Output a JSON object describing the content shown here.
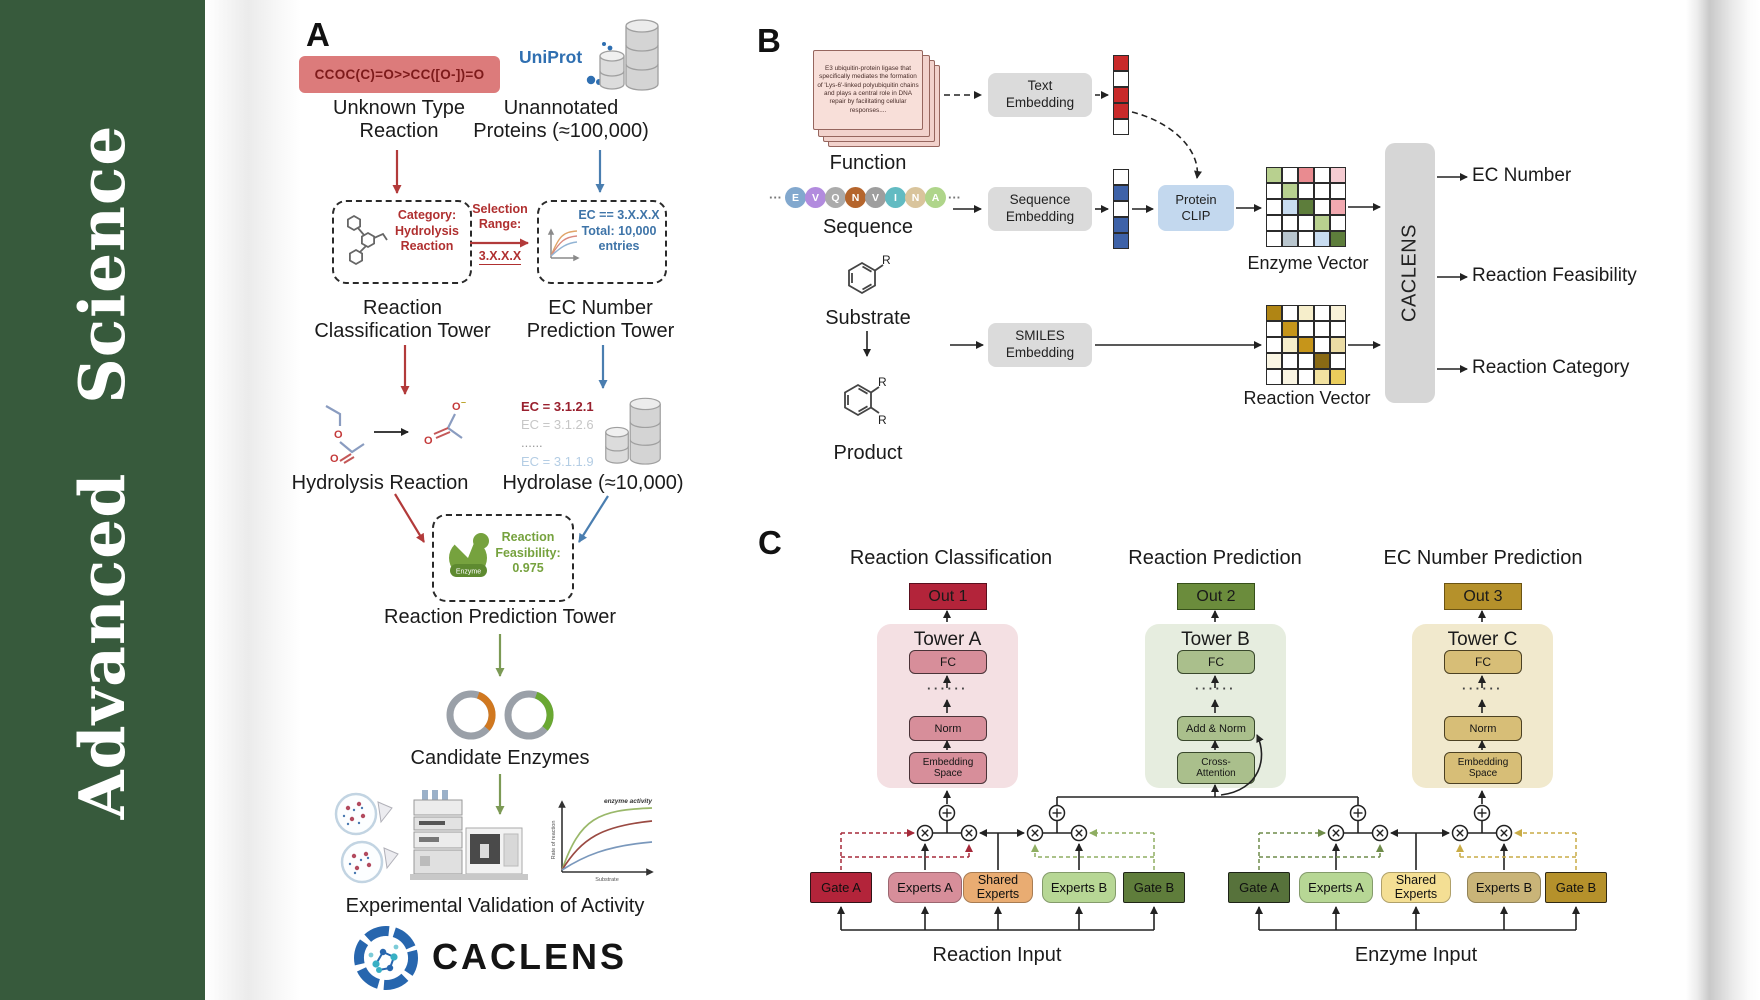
{
  "journal": {
    "name": "Advanced Science",
    "spine_color": "#375A3C"
  },
  "panelA": {
    "label": "A",
    "smiles_box": "CCOC(C)=O>>CC([O-])=O",
    "unknown_type_label": "Unknown Type\nReaction",
    "uniprot_logo": "UniProt",
    "unannotated_label": "Unannotated\nProteins (≈100,000)",
    "category_box": "Category:\nHydrolysis\nReaction",
    "selection_label": "Selection\nRange:",
    "selection_range": "3.X.X.X",
    "ec_box": "EC == 3.X.X.X\nTotal: 10,000\nentries",
    "classification_tower_label": "Reaction\nClassification Tower",
    "ec_tower_label": "EC Number\nPrediction Tower",
    "hydrolysis_label": "Hydrolysis Reaction",
    "ec_list": [
      {
        "text": "EC = 3.1.2.1",
        "color": "#99202E",
        "bold": true
      },
      {
        "text": "EC = 3.1.2.6",
        "color": "#C6C6C6",
        "bold": false
      },
      {
        "text": "......",
        "color": "#9A9A9A",
        "bold": false
      },
      {
        "text": "EC = 3.1.1.9",
        "color": "#B4CDE4",
        "bold": false
      }
    ],
    "hydrolase_label": "Hydrolase (≈10,000)",
    "enzyme_icon_label": "Enzyme",
    "feasibility_box": "Reaction\nFeasibility:\n0.975",
    "prediction_tower_label": "Reaction Prediction Tower",
    "candidate_label": "Candidate Enzymes",
    "validation_label": "Experimental Validation of Activity",
    "brand": "CACLENS",
    "graph": {
      "annotation": "enzyme activity",
      "ylabel": "Rate of reaction",
      "xlabel": "Substrate"
    },
    "accents": {
      "red": "#B23A3A",
      "blue": "#4A7EB0",
      "green": "#7C9A55"
    }
  },
  "panelB": {
    "label": "B",
    "function_card_text": "E3 ubiquitin-protein ligase that specifically mediates the formation of 'Lys-6'-linked polyubiquitin chains and plays a central role in DNA repair by facilitating cellular responses....",
    "function_label": "Function",
    "ellipsis": "···",
    "sequence_letters": [
      {
        "ch": "E",
        "color": "#82A8CE"
      },
      {
        "ch": "V",
        "color": "#B28BDE"
      },
      {
        "ch": "Q",
        "color": "#ABABAB"
      },
      {
        "ch": "N",
        "color": "#B5652C"
      },
      {
        "ch": "V",
        "color": "#9E9E9E"
      },
      {
        "ch": "I",
        "color": "#62BBC2"
      },
      {
        "ch": "N",
        "color": "#D9C49C"
      },
      {
        "ch": "A",
        "color": "#AFD58A"
      }
    ],
    "sequence_label": "Sequence",
    "substrate_label": "Substrate",
    "product_label": "Product",
    "r_label": "R",
    "text_embedding": "Text\nEmbedding",
    "sequence_embedding": "Sequence\nEmbedding",
    "smiles_embedding": "SMILES\nEmbedding",
    "protein_clip": "Protein\nCLIP",
    "text_vector": [
      "#C92A2A",
      "#FFFFFF",
      "#C92A2A",
      "#C92A2A",
      "#FFFFFF"
    ],
    "sequence_vector": [
      "#FFFFFF",
      "#3E62A8",
      "#FFFFFF",
      "#3E62A8",
      "#3E62A8"
    ],
    "enzyme_vector_label": "Enzyme Vector",
    "reaction_vector_label": "Reaction Vector",
    "enzyme_grid": [
      "#B8D08F",
      "#FFFFFF",
      "#E98B90",
      "#FFFFFF",
      "#F5CBD1",
      "#FFFFFF",
      "#B8D08F",
      "#FFFFFF",
      "#FFFFFF",
      "#FFFFFF",
      "#FFFFFF",
      "#C8DCF0",
      "#5D7D3B",
      "#FFFFFF",
      "#F2A9B0",
      "#FFFFFF",
      "#FFFFFF",
      "#FFFFFF",
      "#B8D08F",
      "#FFFFFF",
      "#FFFFFF",
      "#B9C6CE",
      "#FFFFFF",
      "#C8DCF0",
      "#5D7D3B"
    ],
    "reaction_grid": [
      "#B08514",
      "#FFFFFF",
      "#F6EECB",
      "#FFFFFF",
      "#F9F2D8",
      "#FFFFFF",
      "#C6951A",
      "#FFFFFF",
      "#FFFFFF",
      "#FFFFFF",
      "#FFFFFF",
      "#F6EECB",
      "#C6951A",
      "#FFFFFF",
      "#EBDCA4",
      "#FAF5E3",
      "#FFFFFF",
      "#FFFFFF",
      "#8A6A14",
      "#FFFFFF",
      "#FFFFFF",
      "#FAF5E3",
      "#FFFFFF",
      "#F2E2A0",
      "#EACD5C"
    ],
    "caclens_bar": "CACLENS",
    "outputs": [
      "EC Number",
      "Reaction Feasibility",
      "Reaction Category"
    ]
  },
  "panelC": {
    "label": "C",
    "dots": "······",
    "columns": [
      {
        "header": "Reaction Classification",
        "out": "Out 1",
        "out_bg": "#B3243A",
        "out_border": "#5A0F1E",
        "tower": "Tower A",
        "panel_bg": "#F4E0E3",
        "box_bg": "#D78E9A",
        "box_border": "#4A3338",
        "box1": "FC",
        "box2": "Norm",
        "box3": "Embedding\nSpace"
      },
      {
        "header": "Reaction Prediction",
        "out": "Out 2",
        "out_bg": "#6B8C3C",
        "out_border": "#36501A",
        "tower": "Tower B",
        "panel_bg": "#E6EDDF",
        "box_bg": "#AABF8C",
        "box_border": "#39482C",
        "box1": "FC",
        "box2": "Add & Norm",
        "box3": "Cross-\nAttention"
      },
      {
        "header": "EC Number Prediction",
        "out": "Out 3",
        "out_bg": "#B5912B",
        "out_border": "#6B5413",
        "tower": "Tower C",
        "panel_bg": "#F1E9CD",
        "box_bg": "#D7BE77",
        "box_border": "#4C4122",
        "box1": "FC",
        "box2": "Norm",
        "box3": "Embedding\nSpace"
      }
    ],
    "moe_groups": [
      {
        "input_label": "Reaction Input",
        "gate_a": {
          "label": "Gate A",
          "bg": "#B3243A"
        },
        "experts_a": {
          "label": "Experts A",
          "bg": "#D78E9A"
        },
        "shared": {
          "label": "Shared\nExperts",
          "bg": "#E9AC72"
        },
        "experts_b": {
          "label": "Experts B",
          "bg": "#B7D795"
        },
        "gate_b": {
          "label": "Gate B",
          "bg": "#5F7D3B"
        }
      },
      {
        "input_label": "Enzyme Input",
        "gate_a": {
          "label": "Gate A",
          "bg": "#57723B"
        },
        "experts_a": {
          "label": "Experts A",
          "bg": "#B7D795"
        },
        "shared": {
          "label": "Shared\nExperts",
          "bg": "#F4DF94"
        },
        "experts_b": {
          "label": "Experts B",
          "bg": "#C9B478"
        },
        "gate_b": {
          "label": "Gate B",
          "bg": "#B5912B"
        }
      }
    ]
  }
}
